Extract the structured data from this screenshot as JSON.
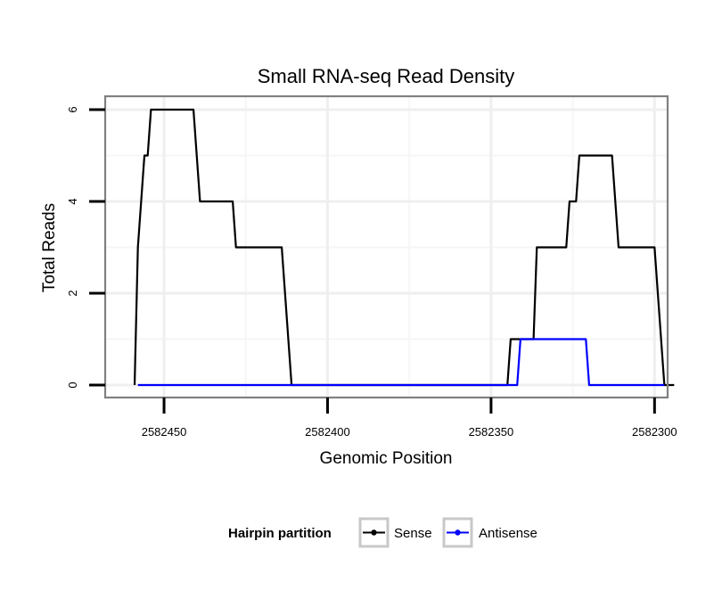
{
  "chart_data": {
    "type": "line",
    "title": "Small RNA-seq Read Density",
    "xlabel": "Genomic Position",
    "ylabel": "Total Reads",
    "xlim": [
      2582468,
      2582296
    ],
    "ylim": [
      0,
      6.3
    ],
    "x_reversed": true,
    "x_ticks": [
      2582450,
      2582400,
      2582350,
      2582300
    ],
    "x_tick_labels": [
      "2582450",
      "2582400",
      "2582350",
      "2582300"
    ],
    "y_ticks": [
      0,
      2,
      4,
      6
    ],
    "y_tick_labels": [
      "0",
      "2",
      "4",
      "6"
    ],
    "grid": true,
    "legend_position": "bottom",
    "legend_title": "Hairpin partition",
    "series": [
      {
        "name": "Sense",
        "color": "#000000",
        "points": [
          [
            2582459,
            0
          ],
          [
            2582458,
            3
          ],
          [
            2582456,
            5
          ],
          [
            2582455,
            5
          ],
          [
            2582454,
            6
          ],
          [
            2582441,
            6
          ],
          [
            2582439,
            4
          ],
          [
            2582429,
            4
          ],
          [
            2582428,
            3
          ],
          [
            2582414,
            3
          ],
          [
            2582411,
            0
          ],
          [
            2582345,
            0
          ],
          [
            2582344,
            1
          ],
          [
            2582337,
            1
          ],
          [
            2582336,
            3
          ],
          [
            2582327,
            3
          ],
          [
            2582326,
            4
          ],
          [
            2582324,
            4
          ],
          [
            2582323,
            5
          ],
          [
            2582313,
            5
          ],
          [
            2582311,
            3
          ],
          [
            2582300,
            3
          ],
          [
            2582297,
            0
          ],
          [
            2582294,
            0
          ]
        ]
      },
      {
        "name": "Antisense",
        "color": "#0000ff",
        "points": [
          [
            2582458,
            0
          ],
          [
            2582342,
            0
          ],
          [
            2582341,
            1
          ],
          [
            2582321,
            1
          ],
          [
            2582320,
            0
          ],
          [
            2582297,
            0
          ]
        ]
      }
    ]
  }
}
